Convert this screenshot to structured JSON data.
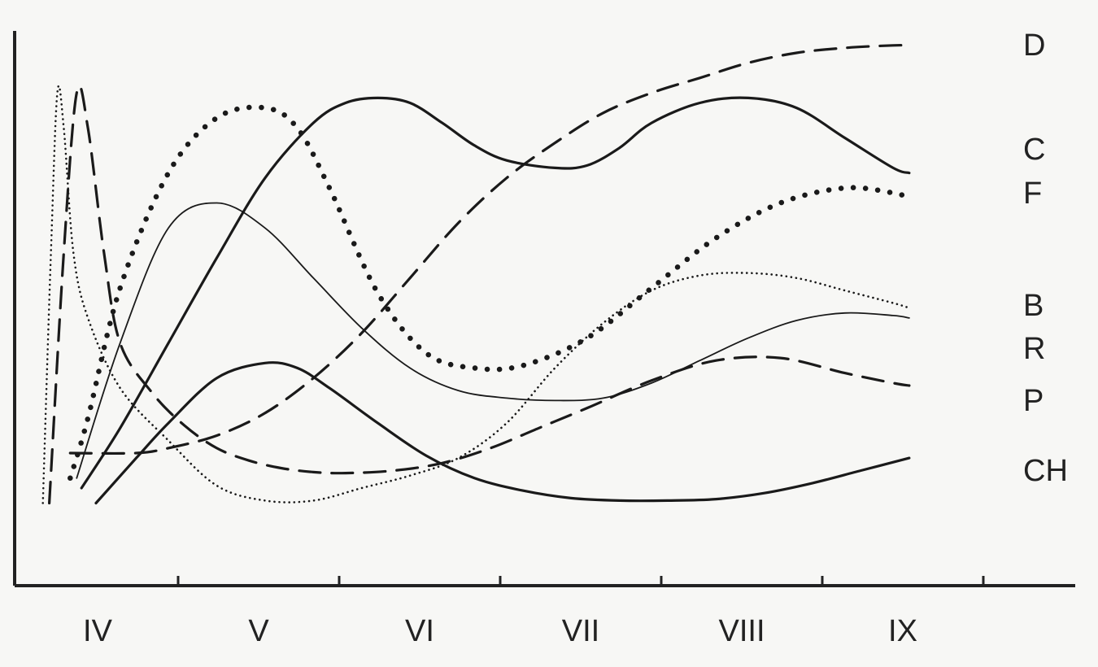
{
  "chart_data": {
    "type": "line",
    "title": "",
    "xlabel": "",
    "ylabel": "",
    "categories": [
      "IV",
      "V",
      "VI",
      "VII",
      "VIII",
      "IX"
    ],
    "xlim": [
      -0.5,
      5.5
    ],
    "ylim": [
      0,
      10
    ],
    "grid": false,
    "legend": "none",
    "series": [
      {
        "name": "D",
        "dash": "dash",
        "weight": "thick",
        "x": [
          -0.17,
          0.24,
          0.44,
          0.74,
          1.04,
          1.34,
          1.64,
          1.94,
          2.24,
          2.54,
          2.84,
          3.14,
          3.44,
          3.74,
          4.04,
          4.34,
          4.64,
          4.94,
          5.04
        ],
        "y": [
          2.0,
          2.0,
          2.1,
          2.35,
          2.8,
          3.5,
          4.4,
          5.5,
          6.6,
          7.5,
          8.2,
          8.8,
          9.2,
          9.5,
          9.8,
          10.0,
          10.1,
          10.15,
          10.15
        ]
      },
      {
        "name": "C",
        "dash": "solid",
        "weight": "thick",
        "x": [
          -0.1,
          0.14,
          0.44,
          0.74,
          1.04,
          1.34,
          1.54,
          1.74,
          1.94,
          2.14,
          2.34,
          2.54,
          2.84,
          3.04,
          3.24,
          3.44,
          3.74,
          4.04,
          4.34,
          4.64,
          4.94,
          5.04
        ],
        "y": [
          1.3,
          2.5,
          4.2,
          5.9,
          7.5,
          8.6,
          9.0,
          9.1,
          9.0,
          8.6,
          8.15,
          7.85,
          7.7,
          7.75,
          8.1,
          8.6,
          9.0,
          9.1,
          8.9,
          8.3,
          7.7,
          7.6
        ]
      },
      {
        "name": "F",
        "dash": "dots",
        "weight": "thick",
        "x": [
          -0.17,
          -0.06,
          0.14,
          0.44,
          0.74,
          1.04,
          1.24,
          1.44,
          1.74,
          2.04,
          2.34,
          2.64,
          3.04,
          3.44,
          3.84,
          4.24,
          4.64,
          4.94,
          5.04
        ],
        "y": [
          1.5,
          2.7,
          5.3,
          7.6,
          8.7,
          8.9,
          8.5,
          7.3,
          5.2,
          4.0,
          3.7,
          3.75,
          4.3,
          5.3,
          6.3,
          7.0,
          7.3,
          7.2,
          7.1
        ]
      },
      {
        "name": "B",
        "dash": "fine-dots",
        "weight": "thin",
        "x": [
          -0.34,
          -0.29,
          -0.25,
          -0.21,
          -0.15,
          -0.06,
          0.14,
          0.44,
          0.74,
          1.04,
          1.34,
          1.64,
          1.94,
          2.24,
          2.54,
          2.84,
          3.14,
          3.44,
          3.74,
          4.04,
          4.34,
          4.64,
          4.94,
          5.04
        ],
        "y": [
          1.0,
          6.0,
          9.2,
          8.5,
          6.0,
          4.7,
          3.3,
          2.25,
          1.35,
          1.05,
          1.05,
          1.3,
          1.55,
          1.9,
          2.6,
          3.7,
          4.6,
          5.25,
          5.55,
          5.6,
          5.5,
          5.25,
          5.0,
          4.9
        ]
      },
      {
        "name": "R",
        "dash": "solid",
        "weight": "thin",
        "x": [
          -0.13,
          0.14,
          0.44,
          0.74,
          1.04,
          1.34,
          1.64,
          1.94,
          2.24,
          2.54,
          2.84,
          3.14,
          3.44,
          3.74,
          4.04,
          4.34,
          4.64,
          4.94,
          5.04
        ],
        "y": [
          1.5,
          4.2,
          6.5,
          7.0,
          6.5,
          5.5,
          4.5,
          3.7,
          3.25,
          3.1,
          3.05,
          3.1,
          3.4,
          3.85,
          4.3,
          4.65,
          4.8,
          4.75,
          4.7
        ]
      },
      {
        "name": "P",
        "dash": "dash",
        "weight": "thick",
        "x": [
          -0.3,
          -0.21,
          -0.13,
          -0.06,
          0.04,
          0.14,
          0.34,
          0.54,
          0.74,
          0.94,
          1.14,
          1.34,
          1.54,
          1.84,
          2.14,
          2.44,
          2.74,
          3.04,
          3.44,
          3.84,
          4.24,
          4.64,
          4.94,
          5.04
        ],
        "y": [
          1.0,
          6.0,
          9.2,
          8.5,
          6.0,
          4.2,
          3.2,
          2.55,
          2.1,
          1.85,
          1.7,
          1.62,
          1.6,
          1.65,
          1.8,
          2.1,
          2.5,
          2.9,
          3.45,
          3.85,
          3.9,
          3.6,
          3.4,
          3.35
        ]
      },
      {
        "name": "CH",
        "dash": "solid",
        "weight": "thick",
        "x": [
          -0.01,
          0.24,
          0.44,
          0.74,
          1.04,
          1.24,
          1.44,
          1.74,
          2.04,
          2.34,
          2.64,
          2.94,
          3.24,
          3.54,
          3.84,
          4.14,
          4.44,
          4.74,
          5.04
        ],
        "y": [
          1.0,
          1.9,
          2.6,
          3.5,
          3.8,
          3.7,
          3.3,
          2.6,
          1.95,
          1.5,
          1.25,
          1.1,
          1.05,
          1.05,
          1.08,
          1.2,
          1.4,
          1.65,
          1.9
        ]
      }
    ]
  }
}
